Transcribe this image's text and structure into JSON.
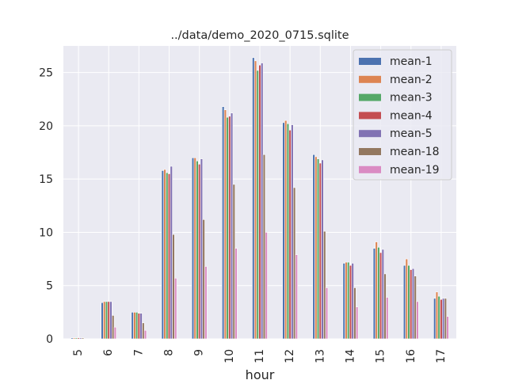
{
  "chart_data": {
    "type": "bar",
    "title": "../data/demo_2020_0715.sqlite",
    "xlabel": "hour",
    "ylabel": "",
    "ylim": [
      0,
      27.5
    ],
    "yticks": [
      "0",
      "5",
      "10",
      "15",
      "20",
      "25"
    ],
    "categories": [
      "5",
      "6",
      "7",
      "8",
      "9",
      "10",
      "11",
      "12",
      "13",
      "14",
      "15",
      "16",
      "17"
    ],
    "grid": true,
    "legend_position": "top-right",
    "series": [
      {
        "name": "mean-1",
        "color": "#4c72b0",
        "values": [
          0.1,
          3.4,
          2.5,
          15.8,
          17.0,
          21.8,
          26.4,
          20.3,
          17.3,
          7.1,
          8.5,
          6.9,
          3.8
        ]
      },
      {
        "name": "mean-2",
        "color": "#dd8452",
        "values": [
          0.1,
          3.5,
          2.5,
          15.9,
          17.0,
          21.5,
          26.1,
          20.5,
          17.1,
          7.2,
          9.1,
          7.5,
          4.4
        ]
      },
      {
        "name": "mean-3",
        "color": "#55a868",
        "values": [
          0.1,
          3.5,
          2.5,
          15.6,
          16.7,
          20.8,
          25.2,
          20.2,
          16.9,
          7.2,
          8.6,
          6.9,
          4.0
        ]
      },
      {
        "name": "mean-4",
        "color": "#c44e52",
        "values": [
          0.1,
          3.5,
          2.4,
          15.5,
          16.4,
          20.9,
          25.7,
          19.6,
          16.5,
          6.9,
          8.1,
          6.5,
          3.7
        ]
      },
      {
        "name": "mean-5",
        "color": "#8172b3",
        "values": [
          0.1,
          3.5,
          2.4,
          16.2,
          16.9,
          21.2,
          25.9,
          20.1,
          16.8,
          7.1,
          8.4,
          6.6,
          3.8
        ]
      },
      {
        "name": "mean-18",
        "color": "#937860",
        "values": [
          0.1,
          2.2,
          1.5,
          9.8,
          11.2,
          14.5,
          17.3,
          14.2,
          10.1,
          4.8,
          6.1,
          5.9,
          3.8
        ]
      },
      {
        "name": "mean-19",
        "color": "#da8bc3",
        "values": [
          0.0,
          1.1,
          0.8,
          5.7,
          6.8,
          8.5,
          10.0,
          7.9,
          4.8,
          3.0,
          3.9,
          3.5,
          2.1
        ]
      }
    ]
  }
}
